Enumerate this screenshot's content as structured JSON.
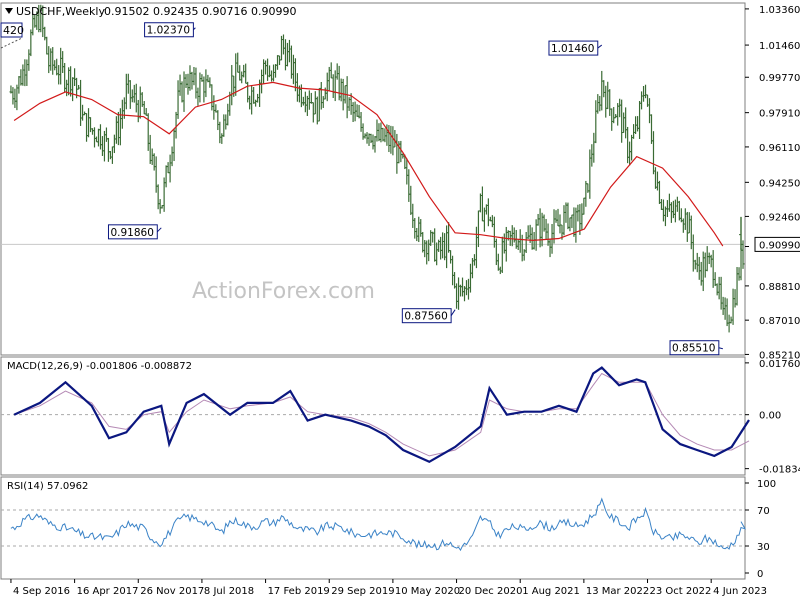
{
  "header": {
    "symbol_label": "USDCHF,Weekly",
    "ohlc_label": "0.91502 0.92435 0.90716 0.90990",
    "corner_label": "420"
  },
  "watermark": "ActionForex.com",
  "colors": {
    "price_bars": "#3a6b34",
    "moving_average": "#d21a1a",
    "macd_line": "#0b1780",
    "signal_line": "#b58ab5",
    "rsi_line": "#3b83c7",
    "current_line": "#c8c8c8",
    "panel_border": "#7f7f7f",
    "label_border": "#0b1780",
    "text": "#000000"
  },
  "chart_data": [
    {
      "type": "ohlc",
      "name": "price",
      "title": "USDCHF,Weekly",
      "open": 0.91502,
      "high": 0.92435,
      "low": 0.90716,
      "close": 0.9099,
      "ylim": [
        0.8518,
        1.0367
      ],
      "y_ticks": [
        "1.03360",
        "1.01460",
        "0.99770",
        "0.97910",
        "0.96110",
        "0.94250",
        "0.92460",
        "0.90880",
        "0.88810",
        "0.87010",
        "0.85210"
      ],
      "y_tick_values": [
        1.0336,
        1.0146,
        0.9977,
        0.9791,
        0.9611,
        0.9425,
        0.9246,
        0.9088,
        0.8881,
        0.8701,
        0.8521
      ],
      "current_value": "0.90990",
      "annotations": [
        {
          "label": "1.02370",
          "value": 1.0237,
          "date": "2018-06"
        },
        {
          "label": "1.01460",
          "value": 1.0146,
          "date": "2022-05"
        },
        {
          "label": "0.91860",
          "value": 0.9186,
          "date": "2018-02"
        },
        {
          "label": "0.87560",
          "value": 0.8756,
          "date": "2020-12"
        },
        {
          "label": "0.85510",
          "value": 0.8551,
          "date": "2023-07"
        }
      ],
      "moving_average_path": [
        [
          "2016-09",
          0.975
        ],
        [
          "2016-12",
          0.984
        ],
        [
          "2017-03",
          0.99
        ],
        [
          "2017-06",
          0.986
        ],
        [
          "2017-09",
          0.978
        ],
        [
          "2017-12",
          0.977
        ],
        [
          "2018-03",
          0.968
        ],
        [
          "2018-06",
          0.982
        ],
        [
          "2018-09",
          0.986
        ],
        [
          "2018-12",
          0.993
        ],
        [
          "2019-03",
          0.995
        ],
        [
          "2019-06",
          0.992
        ],
        [
          "2019-09",
          0.991
        ],
        [
          "2019-12",
          0.988
        ],
        [
          "2020-03",
          0.978
        ],
        [
          "2020-06",
          0.958
        ],
        [
          "2020-09",
          0.935
        ],
        [
          "2020-12",
          0.916
        ],
        [
          "2021-03",
          0.915
        ],
        [
          "2021-06",
          0.913
        ],
        [
          "2021-09",
          0.912
        ],
        [
          "2021-12",
          0.913
        ],
        [
          "2022-03",
          0.918
        ],
        [
          "2022-06",
          0.94
        ],
        [
          "2022-09",
          0.956
        ],
        [
          "2022-12",
          0.95
        ],
        [
          "2023-03",
          0.935
        ],
        [
          "2023-06",
          0.916
        ],
        [
          "2023-07",
          0.909
        ]
      ],
      "price_path": [
        [
          "2016-09",
          0.99
        ],
        [
          "2016-10",
          1.0
        ],
        [
          "2016-11",
          1.02
        ],
        [
          "2016-12",
          1.03
        ],
        [
          "2017-01",
          1.005
        ],
        [
          "2017-02",
          1.003
        ],
        [
          "2017-03",
          0.998
        ],
        [
          "2017-04",
          0.998
        ],
        [
          "2017-05",
          0.975
        ],
        [
          "2017-06",
          0.97
        ],
        [
          "2017-07",
          0.968
        ],
        [
          "2017-08",
          0.96
        ],
        [
          "2017-09",
          0.97
        ],
        [
          "2017-10",
          0.99
        ],
        [
          "2017-11",
          0.985
        ],
        [
          "2017-12",
          0.98
        ],
        [
          "2018-01",
          0.95
        ],
        [
          "2018-02",
          0.93
        ],
        [
          "2018-03",
          0.955
        ],
        [
          "2018-04",
          0.985
        ],
        [
          "2018-05",
          0.998
        ],
        [
          "2018-06",
          0.992
        ],
        [
          "2018-07",
          0.995
        ],
        [
          "2018-08",
          0.985
        ],
        [
          "2018-09",
          0.965
        ],
        [
          "2018-10",
          0.995
        ],
        [
          "2018-11",
          1.0
        ],
        [
          "2018-12",
          0.99
        ],
        [
          "2019-01",
          0.99
        ],
        [
          "2019-02",
          1.005
        ],
        [
          "2019-03",
          0.995
        ],
        [
          "2019-04",
          1.015
        ],
        [
          "2019-05",
          1.005
        ],
        [
          "2019-06",
          0.99
        ],
        [
          "2019-07",
          0.99
        ],
        [
          "2019-08",
          0.98
        ],
        [
          "2019-09",
          0.995
        ],
        [
          "2019-10",
          0.995
        ],
        [
          "2019-11",
          0.99
        ],
        [
          "2019-12",
          0.98
        ],
        [
          "2020-01",
          0.972
        ],
        [
          "2020-02",
          0.97
        ],
        [
          "2020-03",
          0.965
        ],
        [
          "2020-04",
          0.965
        ],
        [
          "2020-05",
          0.962
        ],
        [
          "2020-06",
          0.95
        ],
        [
          "2020-07",
          0.93
        ],
        [
          "2020-08",
          0.912
        ],
        [
          "2020-09",
          0.912
        ],
        [
          "2020-10",
          0.905
        ],
        [
          "2020-11",
          0.91
        ],
        [
          "2020-12",
          0.885
        ],
        [
          "2021-01",
          0.885
        ],
        [
          "2021-02",
          0.9
        ],
        [
          "2021-03",
          0.93
        ],
        [
          "2021-04",
          0.925
        ],
        [
          "2021-05",
          0.9
        ],
        [
          "2021-06",
          0.91
        ],
        [
          "2021-07",
          0.915
        ],
        [
          "2021-08",
          0.91
        ],
        [
          "2021-09",
          0.915
        ],
        [
          "2021-10",
          0.92
        ],
        [
          "2021-11",
          0.915
        ],
        [
          "2021-12",
          0.92
        ],
        [
          "2022-01",
          0.925
        ],
        [
          "2022-02",
          0.92
        ],
        [
          "2022-03",
          0.93
        ],
        [
          "2022-04",
          0.965
        ],
        [
          "2022-05",
          0.995
        ],
        [
          "2022-06",
          0.98
        ],
        [
          "2022-07",
          0.98
        ],
        [
          "2022-08",
          0.96
        ],
        [
          "2022-09",
          0.97
        ],
        [
          "2022-10",
          0.995
        ],
        [
          "2022-11",
          0.95
        ],
        [
          "2022-12",
          0.93
        ],
        [
          "2023-01",
          0.925
        ],
        [
          "2023-02",
          0.93
        ],
        [
          "2023-03",
          0.92
        ],
        [
          "2023-04",
          0.895
        ],
        [
          "2023-05",
          0.9
        ],
        [
          "2023-06",
          0.898
        ],
        [
          "2023-07",
          0.87
        ],
        [
          "2023-08",
          0.876
        ],
        [
          "2023-09",
          0.9
        ],
        [
          "2023-10",
          0.915
        ]
      ]
    },
    {
      "type": "line",
      "name": "MACD",
      "title": "MACD(12,26,9) -0.001806 -0.008872",
      "macd": -0.001806,
      "signal": -0.008872,
      "ylim": [
        -0.0205,
        0.0196
      ],
      "y_ticks": [
        "0.017603",
        "0.00",
        "-0.01834"
      ],
      "y_tick_values": [
        0.017603,
        0.0,
        -0.01834
      ],
      "zero_line": 0.0,
      "macd_path": [
        [
          "2016-09",
          0.0
        ],
        [
          "2016-12",
          0.004
        ],
        [
          "2017-03",
          0.011
        ],
        [
          "2017-06",
          0.003
        ],
        [
          "2017-08",
          -0.008
        ],
        [
          "2017-10",
          -0.006
        ],
        [
          "2017-12",
          0.001
        ],
        [
          "2018-02",
          0.003
        ],
        [
          "2018-03",
          -0.01
        ],
        [
          "2018-05",
          0.004
        ],
        [
          "2018-07",
          0.007
        ],
        [
          "2018-10",
          0.0
        ],
        [
          "2018-12",
          0.004
        ],
        [
          "2019-03",
          0.004
        ],
        [
          "2019-05",
          0.008
        ],
        [
          "2019-07",
          -0.002
        ],
        [
          "2019-09",
          0.0
        ],
        [
          "2019-12",
          -0.002
        ],
        [
          "2020-02",
          -0.004
        ],
        [
          "2020-04",
          -0.007
        ],
        [
          "2020-06",
          -0.012
        ],
        [
          "2020-09",
          -0.016
        ],
        [
          "2020-12",
          -0.011
        ],
        [
          "2021-03",
          -0.004
        ],
        [
          "2021-04",
          0.009
        ],
        [
          "2021-06",
          0.0
        ],
        [
          "2021-08",
          0.001
        ],
        [
          "2021-10",
          0.001
        ],
        [
          "2021-12",
          0.003
        ],
        [
          "2022-02",
          0.001
        ],
        [
          "2022-04",
          0.014
        ],
        [
          "2022-05",
          0.016
        ],
        [
          "2022-07",
          0.01
        ],
        [
          "2022-09",
          0.012
        ],
        [
          "2022-10",
          0.011
        ],
        [
          "2022-12",
          -0.005
        ],
        [
          "2023-02",
          -0.01
        ],
        [
          "2023-04",
          -0.012
        ],
        [
          "2023-06",
          -0.014
        ],
        [
          "2023-08",
          -0.011
        ],
        [
          "2023-10",
          -0.0018
        ]
      ],
      "signal_path": [
        [
          "2016-09",
          0.0
        ],
        [
          "2016-12",
          0.003
        ],
        [
          "2017-03",
          0.008
        ],
        [
          "2017-06",
          0.004
        ],
        [
          "2017-08",
          -0.004
        ],
        [
          "2017-10",
          -0.005
        ],
        [
          "2017-12",
          0.0
        ],
        [
          "2018-02",
          0.001
        ],
        [
          "2018-03",
          -0.006
        ],
        [
          "2018-05",
          0.001
        ],
        [
          "2018-07",
          0.005
        ],
        [
          "2018-10",
          0.002
        ],
        [
          "2018-12",
          0.003
        ],
        [
          "2019-03",
          0.004
        ],
        [
          "2019-05",
          0.006
        ],
        [
          "2019-07",
          0.001
        ],
        [
          "2019-09",
          0.0
        ],
        [
          "2019-12",
          -0.001
        ],
        [
          "2020-02",
          -0.003
        ],
        [
          "2020-04",
          -0.006
        ],
        [
          "2020-06",
          -0.01
        ],
        [
          "2020-09",
          -0.014
        ],
        [
          "2020-12",
          -0.012
        ],
        [
          "2021-03",
          -0.006
        ],
        [
          "2021-04",
          0.005
        ],
        [
          "2021-06",
          0.002
        ],
        [
          "2021-08",
          0.001
        ],
        [
          "2021-10",
          0.001
        ],
        [
          "2021-12",
          0.002
        ],
        [
          "2022-02",
          0.002
        ],
        [
          "2022-04",
          0.01
        ],
        [
          "2022-05",
          0.014
        ],
        [
          "2022-07",
          0.011
        ],
        [
          "2022-09",
          0.011
        ],
        [
          "2022-10",
          0.011
        ],
        [
          "2022-12",
          0.0
        ],
        [
          "2023-02",
          -0.007
        ],
        [
          "2023-04",
          -0.01
        ],
        [
          "2023-06",
          -0.012
        ],
        [
          "2023-08",
          -0.012
        ],
        [
          "2023-10",
          -0.0089
        ]
      ]
    },
    {
      "type": "line",
      "name": "RSI",
      "title": "RSI(14) 57.0962",
      "value": 57.0962,
      "ylim": [
        0,
        100
      ],
      "y_ticks": [
        "100",
        "70",
        "30",
        "0"
      ],
      "y_tick_values": [
        100,
        70,
        30,
        0
      ],
      "reference_lines": [
        70,
        30
      ],
      "rsi_path": [
        [
          "2016-09",
          50
        ],
        [
          "2016-10",
          58
        ],
        [
          "2016-11",
          62
        ],
        [
          "2016-12",
          64
        ],
        [
          "2017-01",
          55
        ],
        [
          "2017-02",
          52
        ],
        [
          "2017-03",
          50
        ],
        [
          "2017-04",
          47
        ],
        [
          "2017-05",
          42
        ],
        [
          "2017-06",
          40
        ],
        [
          "2017-07",
          40
        ],
        [
          "2017-08",
          38
        ],
        [
          "2017-09",
          45
        ],
        [
          "2017-10",
          55
        ],
        [
          "2017-11",
          52
        ],
        [
          "2017-12",
          50
        ],
        [
          "2018-01",
          38
        ],
        [
          "2018-02",
          33
        ],
        [
          "2018-03",
          45
        ],
        [
          "2018-04",
          58
        ],
        [
          "2018-05",
          63
        ],
        [
          "2018-06",
          60
        ],
        [
          "2018-07",
          58
        ],
        [
          "2018-08",
          52
        ],
        [
          "2018-09",
          45
        ],
        [
          "2018-10",
          57
        ],
        [
          "2018-11",
          58
        ],
        [
          "2018-12",
          52
        ],
        [
          "2019-01",
          52
        ],
        [
          "2019-02",
          58
        ],
        [
          "2019-03",
          55
        ],
        [
          "2019-04",
          62
        ],
        [
          "2019-05",
          56
        ],
        [
          "2019-06",
          48
        ],
        [
          "2019-07",
          48
        ],
        [
          "2019-08",
          45
        ],
        [
          "2019-09",
          52
        ],
        [
          "2019-10",
          52
        ],
        [
          "2019-11",
          50
        ],
        [
          "2019-12",
          45
        ],
        [
          "2020-01",
          42
        ],
        [
          "2020-02",
          43
        ],
        [
          "2020-03",
          44
        ],
        [
          "2020-04",
          45
        ],
        [
          "2020-05",
          44
        ],
        [
          "2020-06",
          40
        ],
        [
          "2020-07",
          35
        ],
        [
          "2020-08",
          30
        ],
        [
          "2020-09",
          32
        ],
        [
          "2020-10",
          30
        ],
        [
          "2020-11",
          35
        ],
        [
          "2020-12",
          28
        ],
        [
          "2021-01",
          30
        ],
        [
          "2021-02",
          40
        ],
        [
          "2021-03",
          62
        ],
        [
          "2021-04",
          55
        ],
        [
          "2021-05",
          42
        ],
        [
          "2021-06",
          48
        ],
        [
          "2021-07",
          52
        ],
        [
          "2021-08",
          48
        ],
        [
          "2021-09",
          53
        ],
        [
          "2021-10",
          55
        ],
        [
          "2021-11",
          50
        ],
        [
          "2021-12",
          54
        ],
        [
          "2022-01",
          56
        ],
        [
          "2022-02",
          52
        ],
        [
          "2022-03",
          55
        ],
        [
          "2022-04",
          65
        ],
        [
          "2022-05",
          78
        ],
        [
          "2022-06",
          62
        ],
        [
          "2022-07",
          58
        ],
        [
          "2022-08",
          50
        ],
        [
          "2022-09",
          60
        ],
        [
          "2022-10",
          68
        ],
        [
          "2022-11",
          45
        ],
        [
          "2022-12",
          40
        ],
        [
          "2023-01",
          38
        ],
        [
          "2023-02",
          42
        ],
        [
          "2023-03",
          40
        ],
        [
          "2023-04",
          33
        ],
        [
          "2023-05",
          38
        ],
        [
          "2023-06",
          36
        ],
        [
          "2023-07",
          26
        ],
        [
          "2023-08",
          32
        ],
        [
          "2023-09",
          47
        ],
        [
          "2023-10",
          57
        ]
      ]
    }
  ],
  "x_axis": {
    "labels": [
      "4 Sep 2016",
      "16 Apr 2017",
      "26 Nov 2017",
      "8 Jul 2018",
      "17 Feb 2019",
      "29 Sep 2019",
      "10 May 2020",
      "20 Dec 2020",
      "1 Aug 2021",
      "13 Mar 2022",
      "23 Oct 2022",
      "4 Jun 2023"
    ],
    "dates": [
      "2016-09-04",
      "2017-04-16",
      "2017-11-26",
      "2018-07-08",
      "2019-02-17",
      "2019-09-29",
      "2020-05-10",
      "2020-12-20",
      "2021-08-01",
      "2022-03-13",
      "2022-10-23",
      "2023-06-04"
    ],
    "range": [
      "2016-07-31",
      "2023-10-01"
    ]
  }
}
